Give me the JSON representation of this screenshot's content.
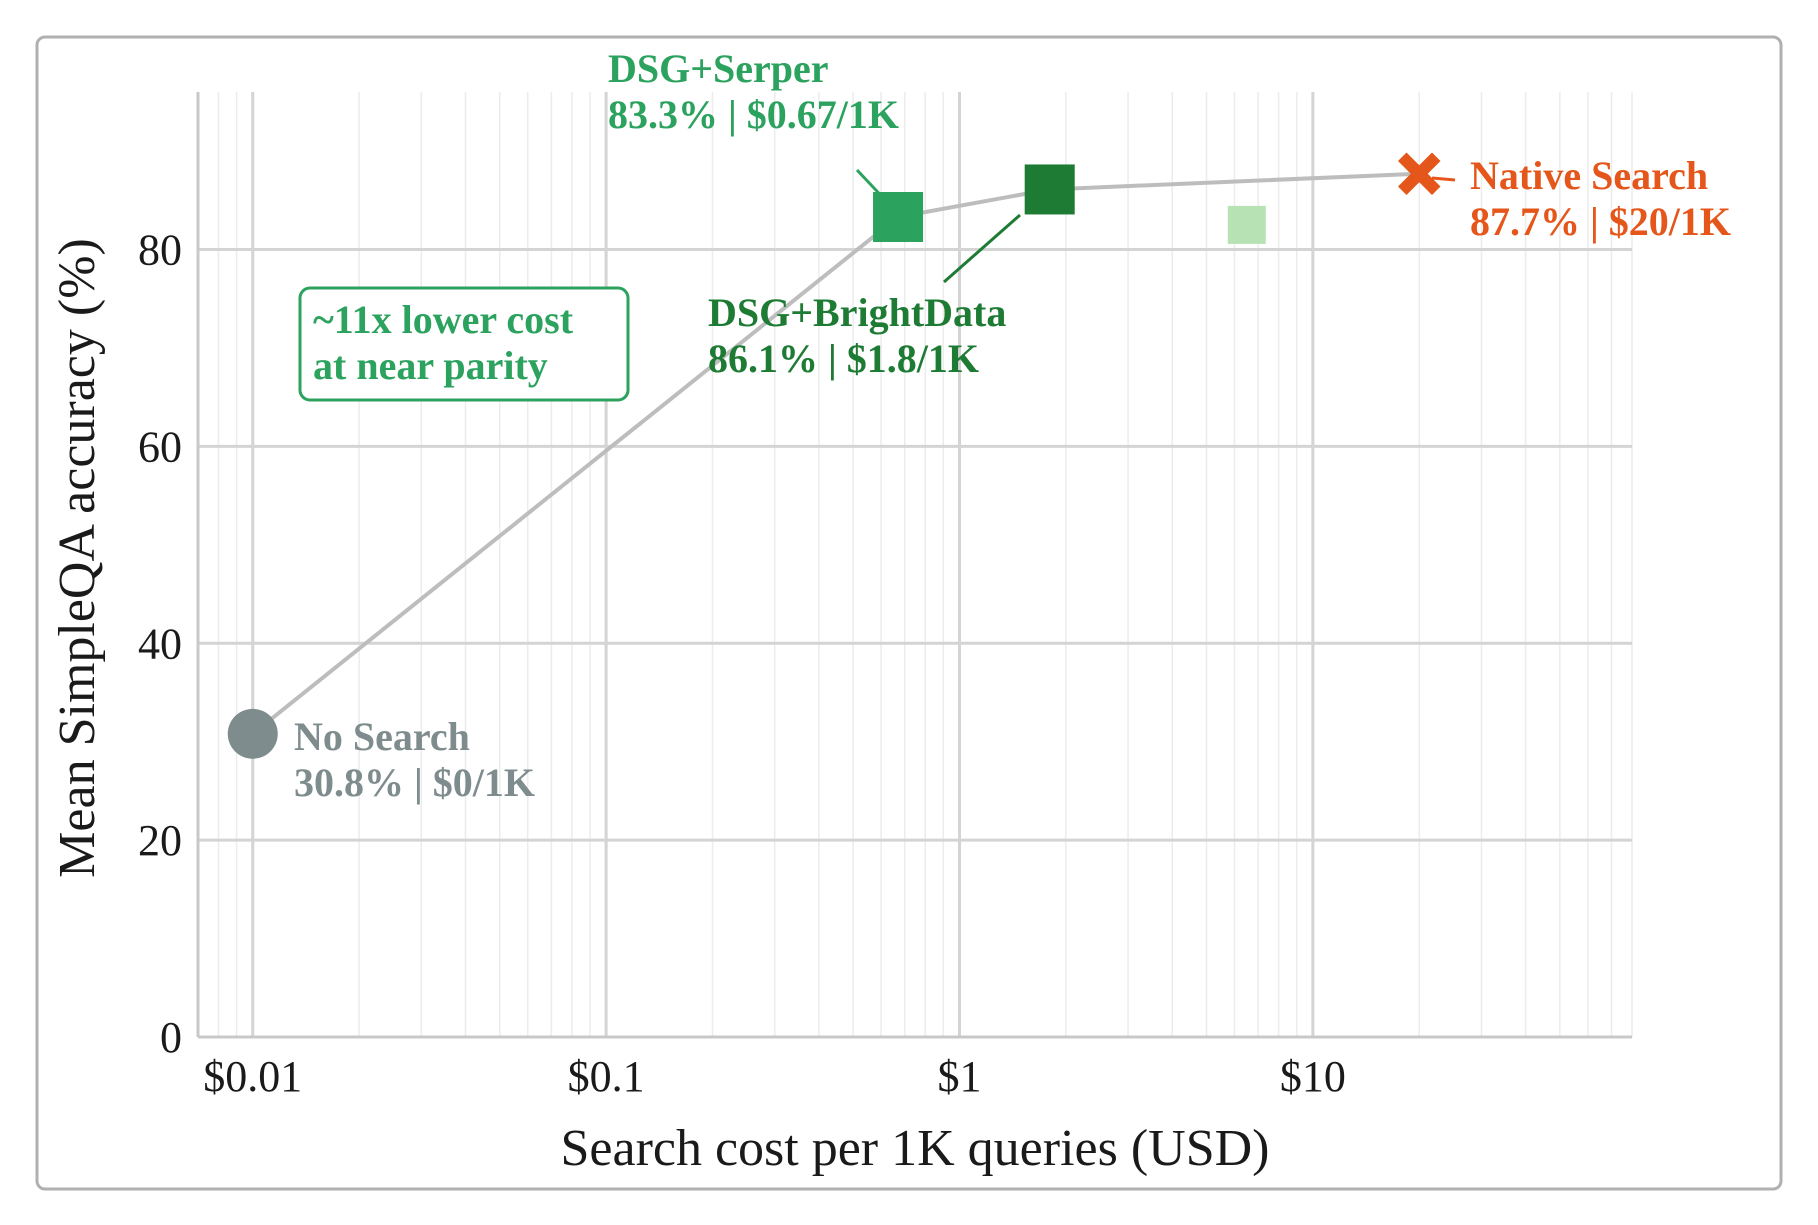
{
  "chart_data": {
    "type": "scatter",
    "xlabel": "Search cost per 1K queries (USD)",
    "ylabel": "Mean SimpleQA accuracy (%)",
    "x_scale": "log",
    "xlim": [
      0.007,
      80
    ],
    "ylim": [
      0,
      96
    ],
    "x_ticks": [
      0.01,
      0.1,
      1,
      10
    ],
    "x_tick_labels": [
      "$0.01",
      "$0.1",
      "$1",
      "$10"
    ],
    "y_ticks": [
      0,
      20,
      40,
      60,
      80
    ],
    "y_tick_labels": [
      "0",
      "20",
      "40",
      "60",
      "80"
    ],
    "grid": true,
    "frontier": [
      [
        0.01,
        30.8
      ],
      [
        0.67,
        83.3
      ],
      [
        1.8,
        86.1
      ],
      [
        20,
        87.7
      ]
    ],
    "points": [
      {
        "name": "No Search",
        "label": "30.8% | $0/1K",
        "x": 0.01,
        "y": 30.8,
        "marker": "circle",
        "color": "#7f8c8d"
      },
      {
        "name": "DSG+Serper",
        "label": "83.3% | $0.67/1K",
        "x": 0.67,
        "y": 83.3,
        "marker": "square",
        "color": "#2ca25f"
      },
      {
        "name": "DSG+BrightData",
        "label": "86.1% | $1.8/1K",
        "x": 1.8,
        "y": 86.1,
        "marker": "square",
        "color": "#1e7b34"
      },
      {
        "name": "",
        "label": "",
        "x": 6.5,
        "y": 82.5,
        "marker": "square",
        "color": "#b7e2b4"
      },
      {
        "name": "Native Search",
        "label": "87.7% | $20/1K",
        "x": 20,
        "y": 87.7,
        "marker": "x",
        "color": "#e5561b"
      }
    ],
    "callout": [
      "~11x lower cost",
      "at near parity"
    ],
    "callout_color": "#2ca25f"
  }
}
